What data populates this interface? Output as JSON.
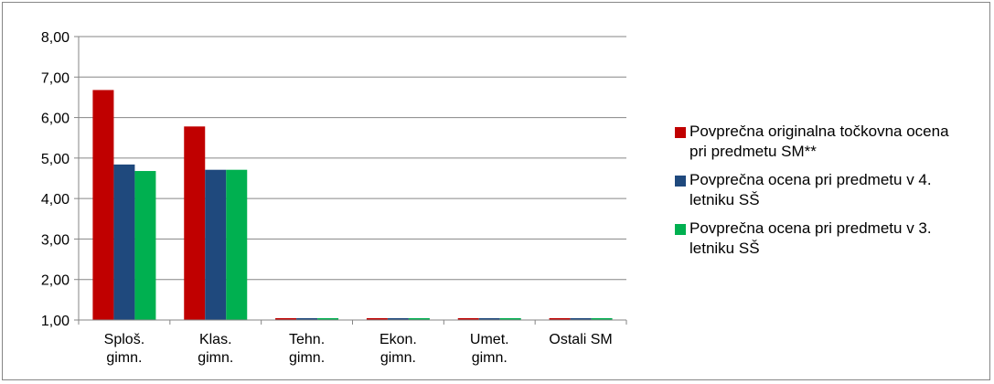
{
  "chart_data": {
    "type": "bar",
    "categories": [
      [
        "Sploš.",
        "gimn."
      ],
      [
        "Klas.",
        "gimn."
      ],
      [
        "Tehn.",
        "gimn."
      ],
      [
        "Ekon.",
        "gimn."
      ],
      [
        "Umet.",
        "gimn."
      ],
      [
        "Ostali SM"
      ]
    ],
    "series": [
      {
        "name": "Povprečna originalna točkovna ocena pri predmetu SM**",
        "color": "#C00000",
        "values": [
          6.68,
          5.78,
          1.0,
          1.0,
          1.0,
          1.0
        ]
      },
      {
        "name": "Povprečna ocena pri predmetu v 4. letniku SŠ",
        "color": "#1F497D",
        "values": [
          4.84,
          4.71,
          1.0,
          1.0,
          1.0,
          1.0
        ]
      },
      {
        "name": "Povprečna ocena pri predmetu v 3. letniku SŠ",
        "color": "#00B050",
        "values": [
          4.68,
          4.71,
          1.0,
          1.0,
          1.0,
          1.0
        ]
      }
    ],
    "yticks": [
      "1,00",
      "2,00",
      "3,00",
      "4,00",
      "5,00",
      "6,00",
      "7,00",
      "8,00"
    ],
    "ylim": [
      1,
      8
    ],
    "grid": true,
    "legend_position": "right",
    "gridline_color": "#868686"
  }
}
